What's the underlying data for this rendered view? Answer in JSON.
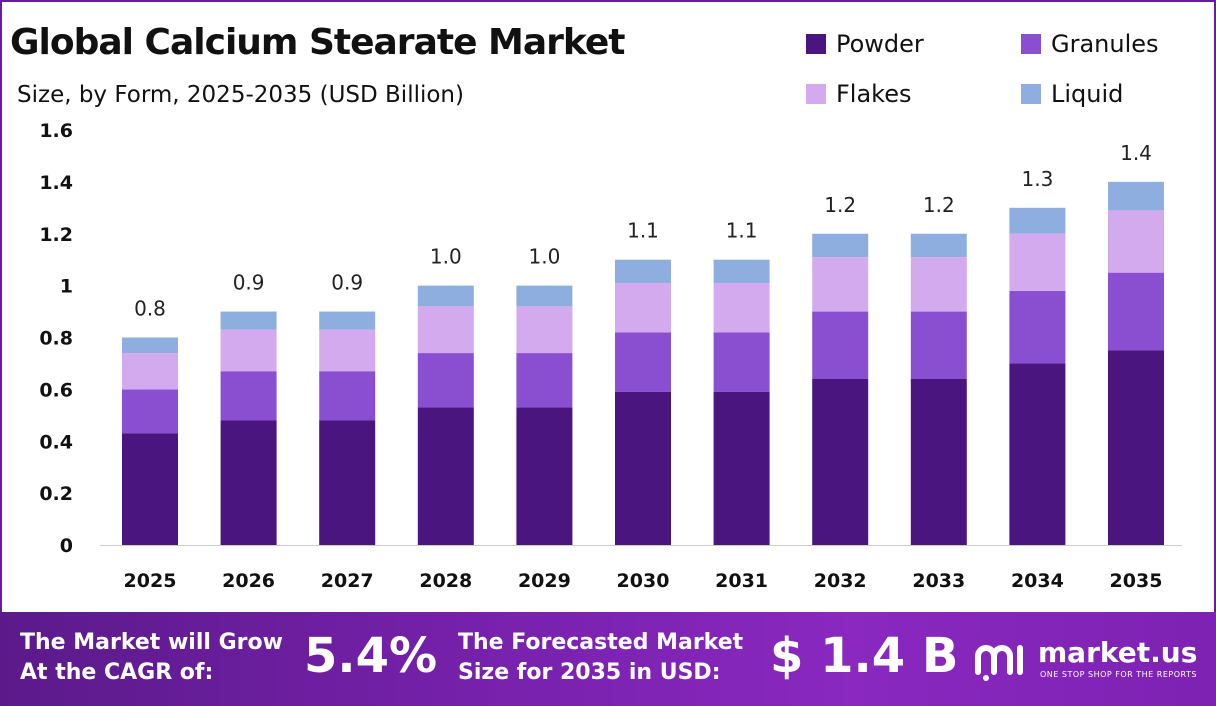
{
  "header": {
    "title": "Global Calcium Stearate Market",
    "subtitle": "Size, by Form, 2025-2035 (USD Billion)"
  },
  "legend": [
    {
      "label": "Powder",
      "color": "#4b1580"
    },
    {
      "label": "Granules",
      "color": "#8a4fd0"
    },
    {
      "label": "Flakes",
      "color": "#d4aaee"
    },
    {
      "label": "Liquid",
      "color": "#8eaee0"
    }
  ],
  "chart_data": {
    "type": "bar",
    "stacked": true,
    "categories": [
      "2025",
      "2026",
      "2027",
      "2028",
      "2029",
      "2030",
      "2031",
      "2032",
      "2033",
      "2034",
      "2035"
    ],
    "series": [
      {
        "name": "Powder",
        "values": [
          0.43,
          0.48,
          0.48,
          0.53,
          0.53,
          0.59,
          0.59,
          0.64,
          0.64,
          0.7,
          0.75
        ]
      },
      {
        "name": "Granules",
        "values": [
          0.17,
          0.19,
          0.19,
          0.21,
          0.21,
          0.23,
          0.23,
          0.26,
          0.26,
          0.28,
          0.3
        ]
      },
      {
        "name": "Flakes",
        "values": [
          0.14,
          0.16,
          0.16,
          0.18,
          0.18,
          0.19,
          0.19,
          0.21,
          0.21,
          0.22,
          0.24
        ]
      },
      {
        "name": "Liquid",
        "values": [
          0.06,
          0.07,
          0.07,
          0.08,
          0.08,
          0.09,
          0.09,
          0.09,
          0.09,
          0.1,
          0.11
        ]
      }
    ],
    "totals": [
      0.8,
      0.9,
      0.9,
      1.0,
      1.0,
      1.1,
      1.1,
      1.2,
      1.2,
      1.3,
      1.4
    ],
    "total_labels": [
      "0.8",
      "0.9",
      "0.9",
      "1.0",
      "1.0",
      "1.1",
      "1.1",
      "1.2",
      "1.2",
      "1.3",
      "1.4"
    ],
    "y_ticks": [
      "0",
      "0.2",
      "0.4",
      "0.6",
      "0.8",
      "1",
      "1.2",
      "1.4",
      "1.6"
    ],
    "ylim": [
      0,
      1.6
    ],
    "grid": false,
    "legend_position": "top-right"
  },
  "footer": {
    "cagr_label_line1": "The Market will Grow",
    "cagr_label_line2": "At the CAGR of:",
    "cagr_value": "5.4%",
    "forecast_label_line1": "The Forecasted Market",
    "forecast_label_line2": "Size for 2035 in USD:",
    "forecast_value": "$ 1.4 B",
    "brand_name": "market.us",
    "brand_tagline": "ONE STOP SHOP FOR THE REPORTS",
    "brand_icon": "market-us-logo-icon"
  }
}
